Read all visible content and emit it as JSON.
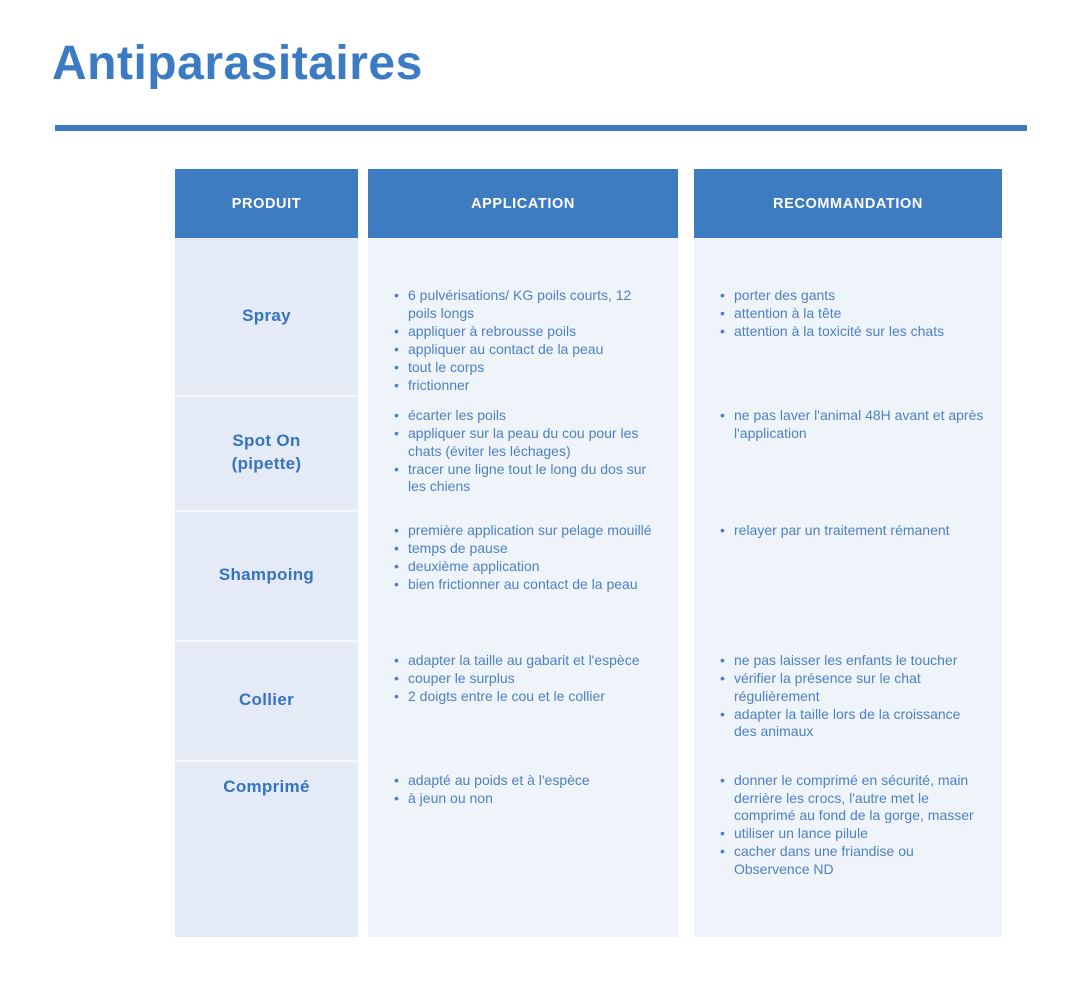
{
  "page": {
    "title": "Antiparasitaires"
  },
  "colors": {
    "accent_blue": "#3d7cc0",
    "title_blue": "#3b7bc4",
    "header_bg": "#3d7cc0",
    "header_text": "#ffffff",
    "product_col_bg": "#e4ebf7",
    "content_col_bg": "#eff4fa",
    "product_text": "#3673c1",
    "bullet_text": "#4e80c2"
  },
  "table": {
    "headers": [
      "PRODUIT",
      "APPLICATION",
      "RECOMMANDATION"
    ],
    "rows": [
      {
        "product": "Spray",
        "application": [
          "6 pulvérisations/ KG poils courts, 12 poils longs",
          "appliquer à rebrousse poils",
          "appliquer au contact de la peau",
          "tout le corps",
          "frictionner"
        ],
        "recommandation": [
          "porter des gants",
          "attention à la tête",
          "attention à la toxicité sur les chats"
        ]
      },
      {
        "product": "Spot On\n(pipette)",
        "application": [
          "écarter les poils",
          "appliquer sur la peau du cou pour les chats (éviter les léchages)",
          "tracer une ligne tout le long du dos sur les chiens"
        ],
        "recommandation": [
          "ne pas laver l'animal 48H avant et après l'application"
        ]
      },
      {
        "product": "Shampoing",
        "application": [
          "première application sur pelage mouillé",
          "temps de pause",
          "deuxième application",
          "bien frictionner au contact de la peau"
        ],
        "recommandation": [
          "relayer par un traitement rémanent"
        ]
      },
      {
        "product": "Collier",
        "application": [
          "adapter la taille au gabarit et l'espèce",
          "couper le surplus",
          "2 doigts entre le cou et le collier"
        ],
        "recommandation": [
          "ne pas laisser les enfants le toucher",
          "vérifier la présence sur le chat régulièrement",
          "adapter la taille lors de la croissance des animaux"
        ]
      },
      {
        "product": "Comprimé",
        "application": [
          "adapté au poids et à l'espèce",
          "à jeun ou non"
        ],
        "recommandation": [
          "donner le comprimé en sécurité, main derrière les crocs, l'autre met le comprimé au fond de la gorge, masser",
          "utiliser un lance pilule",
          "cacher dans une friandise ou Observence ND"
        ]
      }
    ]
  }
}
